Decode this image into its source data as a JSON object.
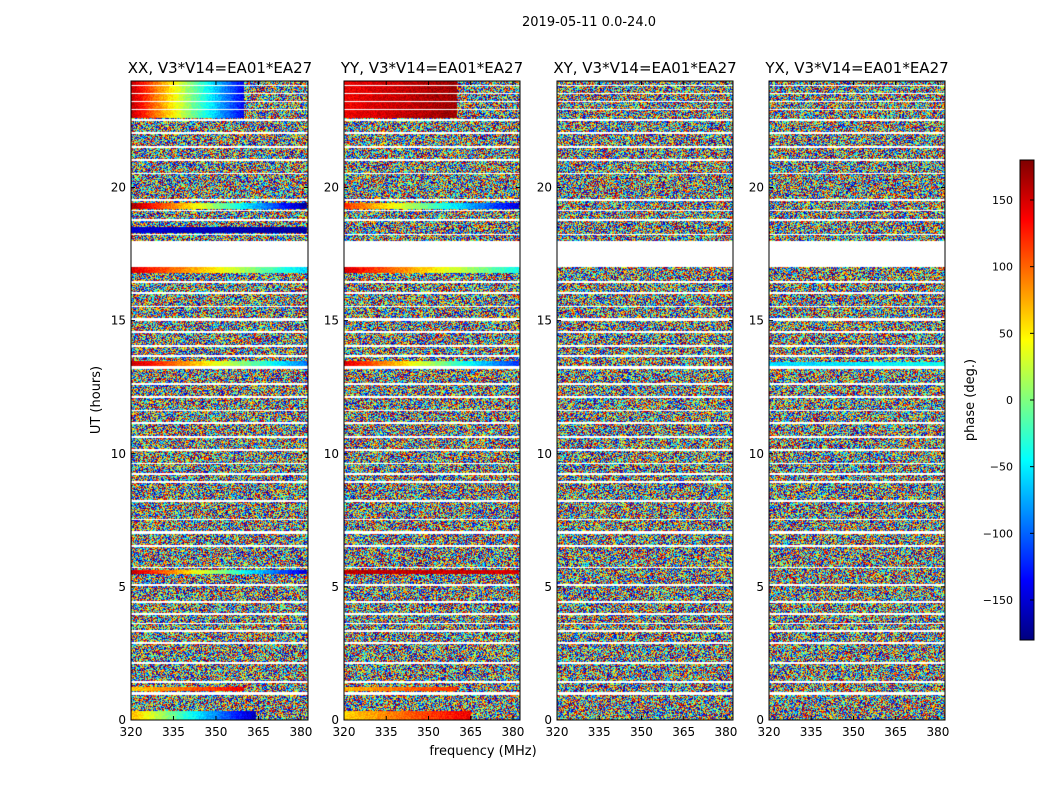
{
  "chart_data": {
    "type": "heatmap",
    "suptitle": "2019-05-11 0.0-24.0",
    "xlabel": "frequency (MHz)",
    "ylabel": "UT (hours)",
    "xlim": [
      320,
      382.5
    ],
    "ylim": [
      0,
      24
    ],
    "xticks": [
      320,
      335,
      350,
      365,
      380
    ],
    "yticks": [
      0,
      5,
      10,
      15,
      20
    ],
    "panels": [
      {
        "title": "XX, V3*V14=EA01*EA27",
        "polarization": "XX",
        "coherent_bands": [
          {
            "t0": 0.0,
            "t1": 0.35,
            "phase_start": 70,
            "phase_end": -160,
            "f_end": 364
          },
          {
            "t0": 1.1,
            "t1": 1.25,
            "phase_start": 60,
            "phase_end": 140,
            "f_end": 360
          },
          {
            "t0": 5.5,
            "t1": 5.65,
            "phase_start": 160,
            "phase_end": -150,
            "f_end": 382
          },
          {
            "t0": 13.3,
            "t1": 13.5,
            "phase_start": 160,
            "phase_end": -90,
            "f_end": 382
          },
          {
            "t0": 16.8,
            "t1": 17.0,
            "phase_start": 150,
            "phase_end": -60,
            "f_end": 382
          },
          {
            "t0": 19.2,
            "t1": 19.4,
            "phase_start": 170,
            "phase_end": -170,
            "f_end": 382
          },
          {
            "t0": 18.3,
            "t1": 18.5,
            "phase_start": -150,
            "phase_end": -170,
            "f_end": 382
          },
          {
            "t0": 22.6,
            "t1": 24.0,
            "phase_start": 160,
            "phase_end": -140,
            "f_end": 360
          }
        ]
      },
      {
        "title": "YY, V3*V14=EA01*EA27",
        "polarization": "YY",
        "coherent_bands": [
          {
            "t0": 0.0,
            "t1": 0.35,
            "phase_start": 60,
            "phase_end": 140,
            "f_end": 365
          },
          {
            "t0": 1.1,
            "t1": 1.25,
            "phase_start": 70,
            "phase_end": 120,
            "f_end": 360
          },
          {
            "t0": 5.5,
            "t1": 5.65,
            "phase_start": 160,
            "phase_end": 150,
            "f_end": 382
          },
          {
            "t0": 13.3,
            "t1": 13.5,
            "phase_start": 150,
            "phase_end": -120,
            "f_end": 382
          },
          {
            "t0": 16.8,
            "t1": 17.0,
            "phase_start": 150,
            "phase_end": -40,
            "f_end": 382
          },
          {
            "t0": 19.2,
            "t1": 19.4,
            "phase_start": 120,
            "phase_end": -150,
            "f_end": 382
          },
          {
            "t0": 22.6,
            "t1": 24.0,
            "phase_start": 140,
            "phase_end": 170,
            "f_end": 360
          }
        ]
      },
      {
        "title": "XY, V3*V14=EA01*EA27",
        "polarization": "XY",
        "coherent_bands": []
      },
      {
        "title": "YX, V3*V14=EA01*EA27",
        "polarization": "YX",
        "coherent_bands": [
          {
            "t0": 13.3,
            "t1": 13.45,
            "phase_start": -60,
            "phase_end": -40,
            "f_end": 382
          }
        ]
      }
    ],
    "flagged_rows": [
      [
        0.95,
        1.05
      ],
      [
        1.4,
        1.48
      ],
      [
        2.1,
        2.18
      ],
      [
        2.85,
        2.92
      ],
      [
        3.3,
        3.38
      ],
      [
        3.6,
        3.66
      ],
      [
        3.95,
        4.02
      ],
      [
        4.4,
        4.48
      ],
      [
        5.05,
        5.12
      ],
      [
        5.7,
        5.76
      ],
      [
        6.5,
        6.58
      ],
      [
        7.0,
        7.08
      ],
      [
        7.5,
        7.56
      ],
      [
        8.2,
        8.28
      ],
      [
        8.9,
        8.96
      ],
      [
        9.2,
        9.28
      ],
      [
        9.6,
        9.66
      ],
      [
        10.1,
        10.18
      ],
      [
        10.6,
        10.66
      ],
      [
        11.1,
        11.18
      ],
      [
        11.6,
        11.66
      ],
      [
        12.1,
        12.18
      ],
      [
        12.6,
        12.66
      ],
      [
        13.2,
        13.28
      ],
      [
        13.65,
        13.72
      ],
      [
        14.0,
        14.08
      ],
      [
        14.55,
        14.62
      ],
      [
        15.0,
        15.08
      ],
      [
        15.5,
        15.56
      ],
      [
        16.0,
        16.08
      ],
      [
        16.4,
        16.48
      ],
      [
        17.0,
        18.0
      ],
      [
        18.2,
        18.26
      ],
      [
        18.75,
        18.82
      ],
      [
        19.1,
        19.16
      ],
      [
        19.5,
        19.56
      ],
      [
        20.5,
        20.56
      ],
      [
        21.0,
        21.08
      ],
      [
        21.5,
        21.56
      ],
      [
        22.0,
        22.08
      ],
      [
        22.5,
        22.58
      ],
      [
        22.9,
        22.95
      ],
      [
        23.2,
        23.26
      ],
      [
        23.5,
        23.55
      ],
      [
        23.8,
        23.86
      ]
    ],
    "colorbar": {
      "label": "phase (deg.)",
      "range": [
        -180,
        180
      ],
      "ticks": [
        150,
        100,
        50,
        0,
        -50,
        -100,
        -150
      ],
      "tick_labels": [
        "150",
        "100",
        "50",
        "0",
        "−50",
        "−100",
        "−150"
      ],
      "colormap": "jet",
      "colormap_stops": [
        "#00007f",
        "#0000ff",
        "#007fff",
        "#00ffff",
        "#7fff7f",
        "#ffff00",
        "#ff7f00",
        "#ff0000",
        "#7f0000"
      ]
    }
  }
}
